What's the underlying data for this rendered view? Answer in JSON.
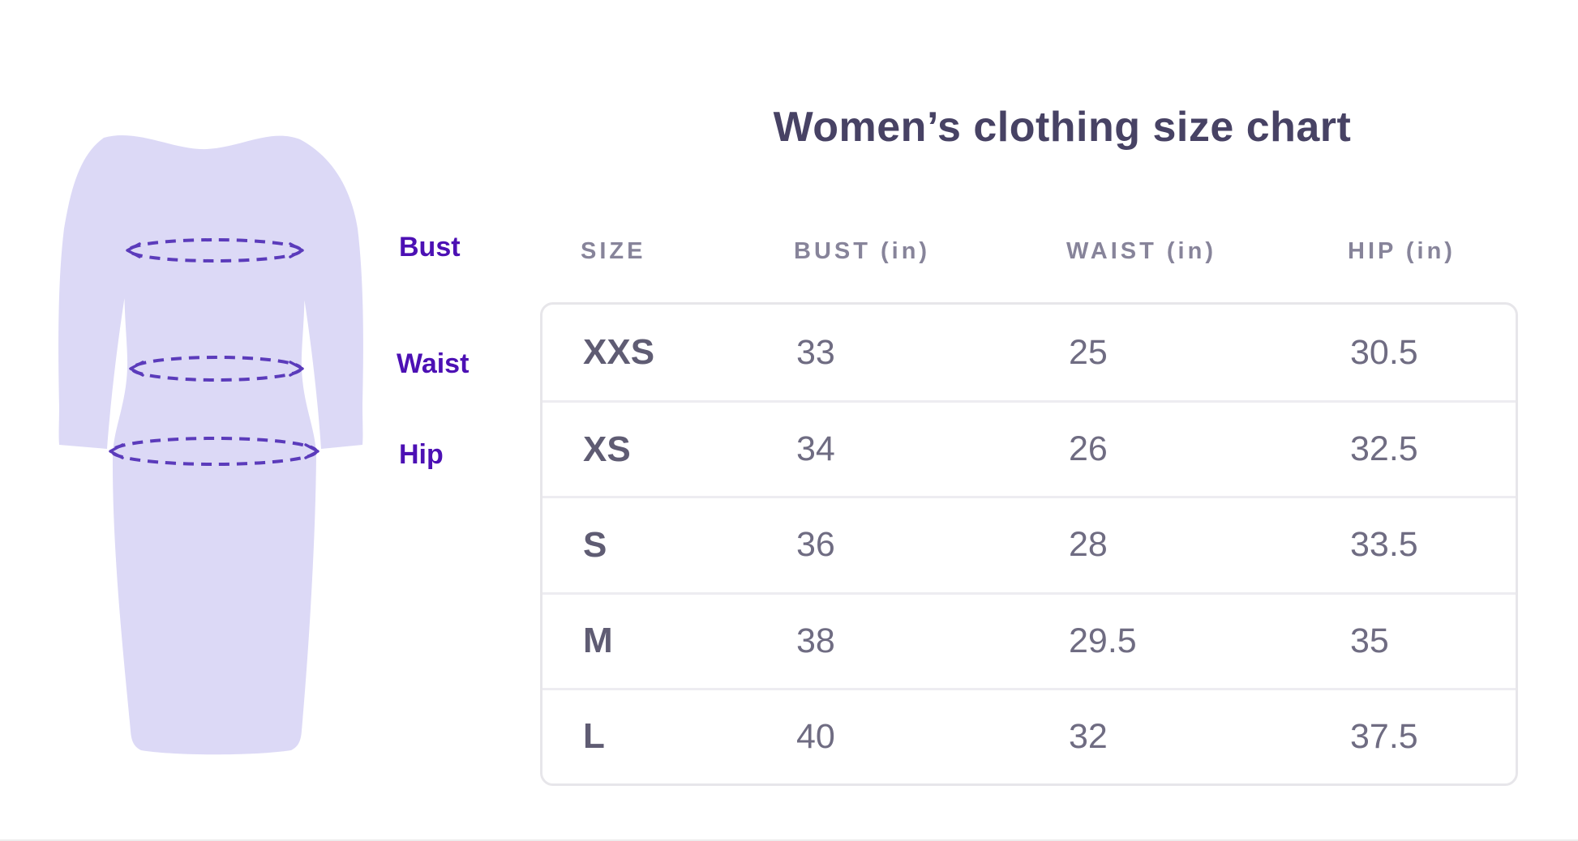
{
  "page": {
    "title": "Women’s clothing size chart"
  },
  "diagram": {
    "bust_label": "Bust",
    "waist_label": "Waist",
    "hip_label": "Hip"
  },
  "table": {
    "headers": [
      "SIZE",
      "BUST (in)",
      "WAIST (in)",
      "HIP (in)"
    ],
    "rows": [
      [
        "XXS",
        "33",
        "25",
        "30.5"
      ],
      [
        "XS",
        "34",
        "26",
        "32.5"
      ],
      [
        "S",
        "36",
        "28",
        "33.5"
      ],
      [
        "M",
        "38",
        "29.5",
        "35"
      ],
      [
        "L",
        "40",
        "32",
        "37.5"
      ]
    ]
  },
  "chart_data": {
    "type": "table",
    "title": "Women’s clothing size chart",
    "columns": [
      "SIZE",
      "BUST (in)",
      "WAIST (in)",
      "HIP (in)"
    ],
    "rows": [
      {
        "size": "XXS",
        "bust_in": 33,
        "waist_in": 25,
        "hip_in": 30.5
      },
      {
        "size": "XS",
        "bust_in": 34,
        "waist_in": 26,
        "hip_in": 32.5
      },
      {
        "size": "S",
        "bust_in": 36,
        "waist_in": 28,
        "hip_in": 33.5
      },
      {
        "size": "M",
        "bust_in": 38,
        "waist_in": 29.5,
        "hip_in": 35
      },
      {
        "size": "L",
        "bust_in": 40,
        "waist_in": 32,
        "hip_in": 37.5
      }
    ],
    "annotations": [
      "Bust",
      "Waist",
      "Hip"
    ]
  },
  "colors": {
    "background": "#ffffff",
    "title": "#474264",
    "label_purple": "#4c10b4",
    "dress_fill": "#dcd9f6",
    "dash_stroke": "#5b3bbb",
    "header_gray": "#87849a",
    "size_text": "#5f5c73",
    "value_text": "#6f6c82",
    "table_border": "#e7e6ea",
    "row_divider": "#edecf1"
  }
}
